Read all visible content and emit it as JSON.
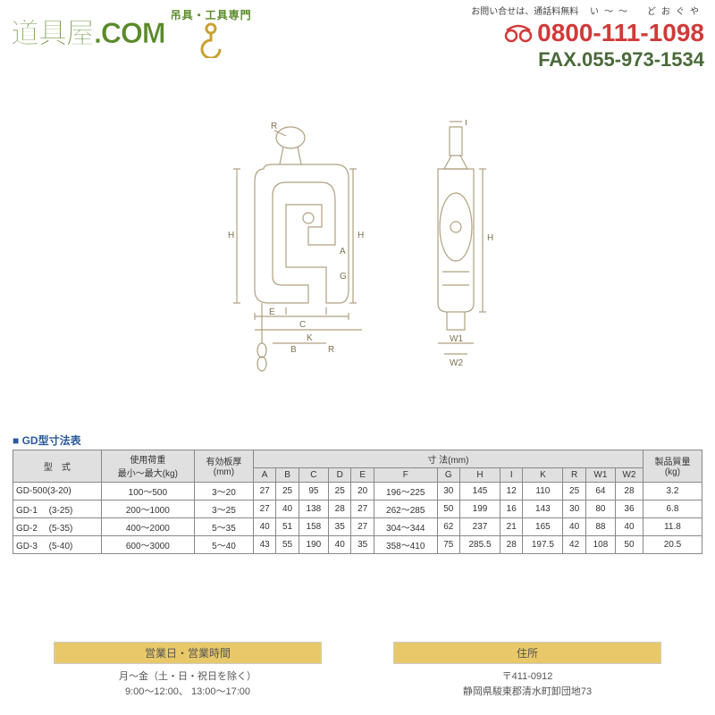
{
  "header": {
    "logo_main": "道具屋.COM",
    "logo_sub": "吊具・工具専門",
    "contact_label": "お問い合せは、通話料無料",
    "contact_ruby": "い〜〜　どおぐや",
    "phone": "0800-111-1098",
    "fax_label": "FAX.",
    "fax": "055-973-1534",
    "logo_color": "#5a8a2a",
    "phone_color": "#d13a3a",
    "fax_color": "#4a6a3a"
  },
  "diagram": {
    "stroke_color": "#b0a080",
    "labels_front": [
      "R",
      "H",
      "A",
      "G",
      "B",
      "R",
      "E",
      "C",
      "K"
    ],
    "labels_side": [
      "I",
      "H",
      "W2",
      "W1"
    ]
  },
  "table": {
    "title": "■ GD型寸法表",
    "title_color": "#2a5a9a",
    "header_bg": "#e0e0e0",
    "border_color": "#888888",
    "columns": {
      "model": "型　式",
      "load": "使用荷重\n最小〜最大(kg)",
      "thickness": "有効板厚\n(mm)",
      "dims_group": "寸 法(mm)",
      "dims": [
        "A",
        "B",
        "C",
        "D",
        "E",
        "F",
        "G",
        "H",
        "I",
        "K",
        "R",
        "W1",
        "W2"
      ],
      "mass": "製品質量\n(kg)"
    },
    "rows": [
      {
        "model": "GD-500(3-20)",
        "load": "100〜500",
        "thick": "3〜20",
        "A": "27",
        "B": "25",
        "C": "95",
        "D": "25",
        "E": "20",
        "F": "196〜225",
        "G": "30",
        "H": "145",
        "I": "12",
        "K": "110",
        "R": "25",
        "W1": "64",
        "W2": "28",
        "mass": "3.2"
      },
      {
        "model": "GD-1　  (3-25)",
        "load": "200〜1000",
        "thick": "3〜25",
        "A": "27",
        "B": "40",
        "C": "138",
        "D": "28",
        "E": "27",
        "F": "262〜285",
        "G": "50",
        "H": "199",
        "I": "16",
        "K": "143",
        "R": "30",
        "W1": "80",
        "W2": "36",
        "mass": "6.8"
      },
      {
        "model": "GD-2　  (5-35)",
        "load": "400〜2000",
        "thick": "5〜35",
        "A": "40",
        "B": "51",
        "C": "158",
        "D": "35",
        "E": "27",
        "F": "304〜344",
        "G": "62",
        "H": "237",
        "I": "21",
        "K": "165",
        "R": "40",
        "W1": "88",
        "W2": "40",
        "mass": "11.8"
      },
      {
        "model": "GD-3　  (5-40)",
        "load": "600〜3000",
        "thick": "5〜40",
        "A": "43",
        "B": "55",
        "C": "190",
        "D": "40",
        "E": "35",
        "F": "358〜410",
        "G": "75",
        "H": "285.5",
        "I": "28",
        "K": "197.5",
        "R": "42",
        "W1": "108",
        "W2": "50",
        "mass": "20.5"
      }
    ]
  },
  "footer": {
    "hours_title": "営業日・営業時間",
    "hours_line1": "月〜金（土・日・祝日を除く）",
    "hours_line2": "9:00〜12:00、 13:00〜17:00",
    "addr_title": "住所",
    "addr_line1": "〒411-0912",
    "addr_line2": "静岡県駿東郡清水町卸団地73",
    "head_bg": "#e8c868"
  }
}
